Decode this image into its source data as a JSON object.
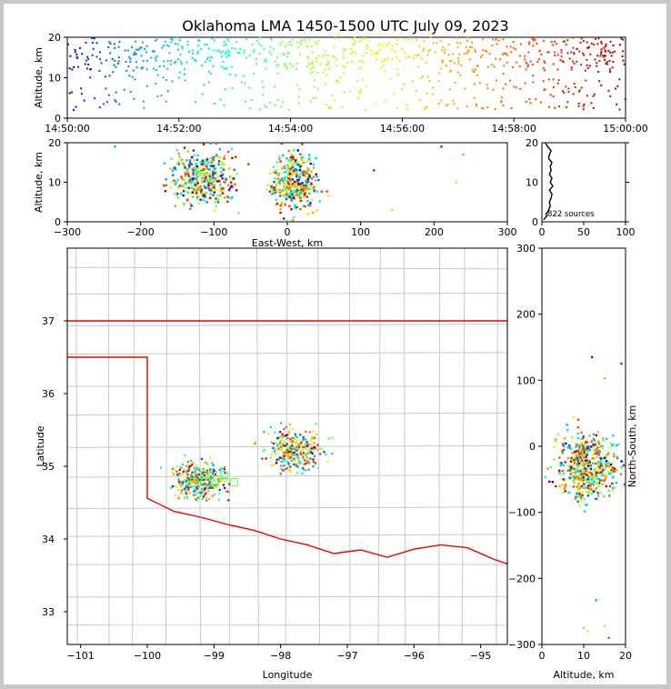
{
  "title": "Oklahoma LMA 1450-1500 UTC July 09, 2023",
  "colors": {
    "state_border": "#ee0000",
    "county_lines": "#c8c8c8",
    "profile_line": "#000000"
  },
  "color_scale": [
    "#0000cc",
    "#00aaff",
    "#00ffcc",
    "#99ff33",
    "#ffee00",
    "#ff9900",
    "#ff3300",
    "#8b0000"
  ],
  "chart_data": [
    {
      "type": "scatter",
      "panel": "time-height",
      "title": "",
      "xlabel": "",
      "ylabel": "Altitude, km",
      "x_range": [
        "14:50:00",
        "15:00:00"
      ],
      "xticks": [
        "14:50:00",
        "14:52:00",
        "14:54:00",
        "14:56:00",
        "14:58:00",
        "15:00:00"
      ],
      "ylim": [
        0,
        20
      ],
      "yticks": [
        "0",
        "10",
        "20"
      ],
      "colored_by": "time"
    },
    {
      "type": "scatter",
      "panel": "east-west-height",
      "xlabel": "East-West, km",
      "ylabel": "Altitude, km",
      "xlim": [
        -300,
        300
      ],
      "xticks": [
        "−300",
        "−200",
        "−100",
        "0",
        "100",
        "200",
        "300"
      ],
      "ylim": [
        0,
        20
      ],
      "yticks": [
        "0",
        "10",
        "20"
      ],
      "clusters": [
        {
          "x_center": -115,
          "x_spread": 30,
          "z_center": 11,
          "z_spread": 5
        },
        {
          "x_center": 10,
          "x_spread": 22,
          "z_center": 10,
          "z_spread": 5
        }
      ]
    },
    {
      "type": "line",
      "panel": "altitude-histogram",
      "xlim": [
        0,
        100
      ],
      "xticks": [
        "0",
        "50",
        "100"
      ],
      "ylim": [
        0,
        20
      ],
      "yticks": [
        "0",
        "10",
        "20"
      ],
      "annotation": "822 sources",
      "profile": [
        {
          "alt": 0.5,
          "count": 2
        },
        {
          "alt": 1,
          "count": 4
        },
        {
          "alt": 1.5,
          "count": 6
        },
        {
          "alt": 2,
          "count": 5
        },
        {
          "alt": 2.5,
          "count": 7
        },
        {
          "alt": 3,
          "count": 8
        },
        {
          "alt": 4,
          "count": 10
        },
        {
          "alt": 5,
          "count": 9
        },
        {
          "alt": 6,
          "count": 11
        },
        {
          "alt": 7,
          "count": 12
        },
        {
          "alt": 8,
          "count": 9
        },
        {
          "alt": 9,
          "count": 13
        },
        {
          "alt": 10,
          "count": 10
        },
        {
          "alt": 11,
          "count": 12
        },
        {
          "alt": 12,
          "count": 9
        },
        {
          "alt": 13,
          "count": 11
        },
        {
          "alt": 14,
          "count": 10
        },
        {
          "alt": 15,
          "count": 12
        },
        {
          "alt": 16,
          "count": 8
        },
        {
          "alt": 17,
          "count": 9
        },
        {
          "alt": 18,
          "count": 11
        },
        {
          "alt": 19,
          "count": 7
        },
        {
          "alt": 20,
          "count": 4
        }
      ]
    },
    {
      "type": "scatter",
      "panel": "plan-view-map",
      "xlabel": "Longitude",
      "ylabel": "Latitude",
      "xlim": [
        -101.2,
        -94.6
      ],
      "xticks": [
        "−101",
        "−100",
        "−99",
        "−98",
        "−97",
        "−96",
        "−95"
      ],
      "ylim": [
        32.55,
        38.0
      ],
      "yticks": [
        "33",
        "34",
        "35",
        "36",
        "37"
      ],
      "clusters": [
        {
          "lon": -99.2,
          "lat": 34.8,
          "lon_spread": 0.28,
          "lat_spread": 0.18
        },
        {
          "lon": -97.8,
          "lat": 35.22,
          "lon_spread": 0.3,
          "lat_spread": 0.2
        }
      ]
    },
    {
      "type": "scatter",
      "panel": "height-north-south",
      "xlabel": "Altitude, km",
      "ylabel": "North-South, km",
      "xlim": [
        0,
        20
      ],
      "xticks": [
        "0",
        "10",
        "20"
      ],
      "ylim": [
        -300,
        300
      ],
      "yticks": [
        "−300",
        "−200",
        "−100",
        "0",
        "100",
        "200",
        "300"
      ],
      "clusters": [
        {
          "y_center": -30,
          "y_spread": 35,
          "z_center": 11,
          "z_spread": 5
        }
      ]
    }
  ]
}
